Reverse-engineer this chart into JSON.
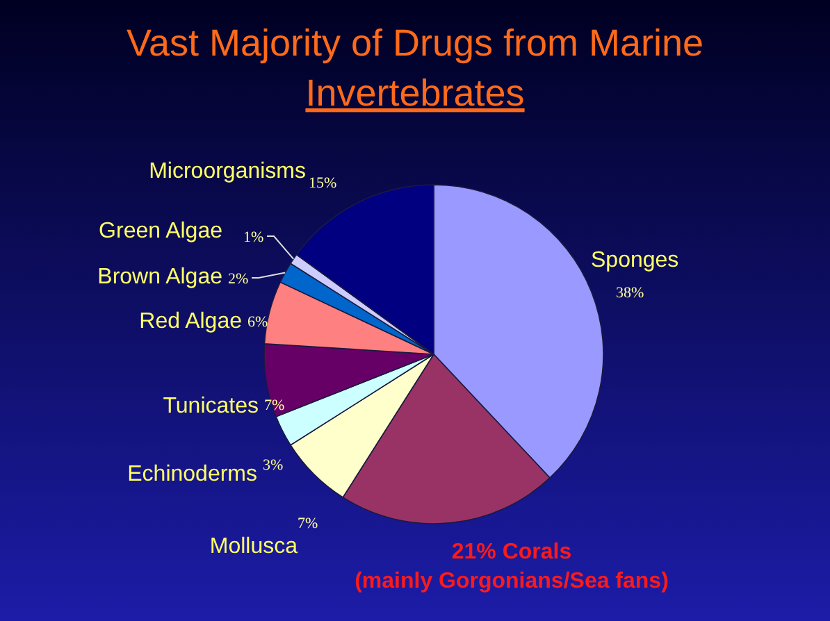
{
  "chart_data": {
    "type": "pie",
    "title": "Vast Majority of Drugs from Marine",
    "subtitle": "Invertebrates",
    "categories": [
      "Sponges",
      "Corals\n(mainly Gorgonians/Sea fans)",
      "Mollusca",
      "Echinoderms",
      "Tunicates",
      "Red Algae",
      "Brown Algae",
      "Green Algae",
      "Microorganisms"
    ],
    "values": [
      38,
      21,
      7,
      3,
      7,
      6,
      2,
      1,
      15
    ],
    "value_labels": [
      "38%",
      "21%",
      "7%",
      "3%",
      "7%",
      "6%",
      "2%",
      "1%",
      "15%"
    ],
    "colors": [
      "#9999ff",
      "#993366",
      "#ffffcc",
      "#ccffff",
      "#660066",
      "#ff8080",
      "#0066cc",
      "#ccccff",
      "#000080"
    ]
  }
}
